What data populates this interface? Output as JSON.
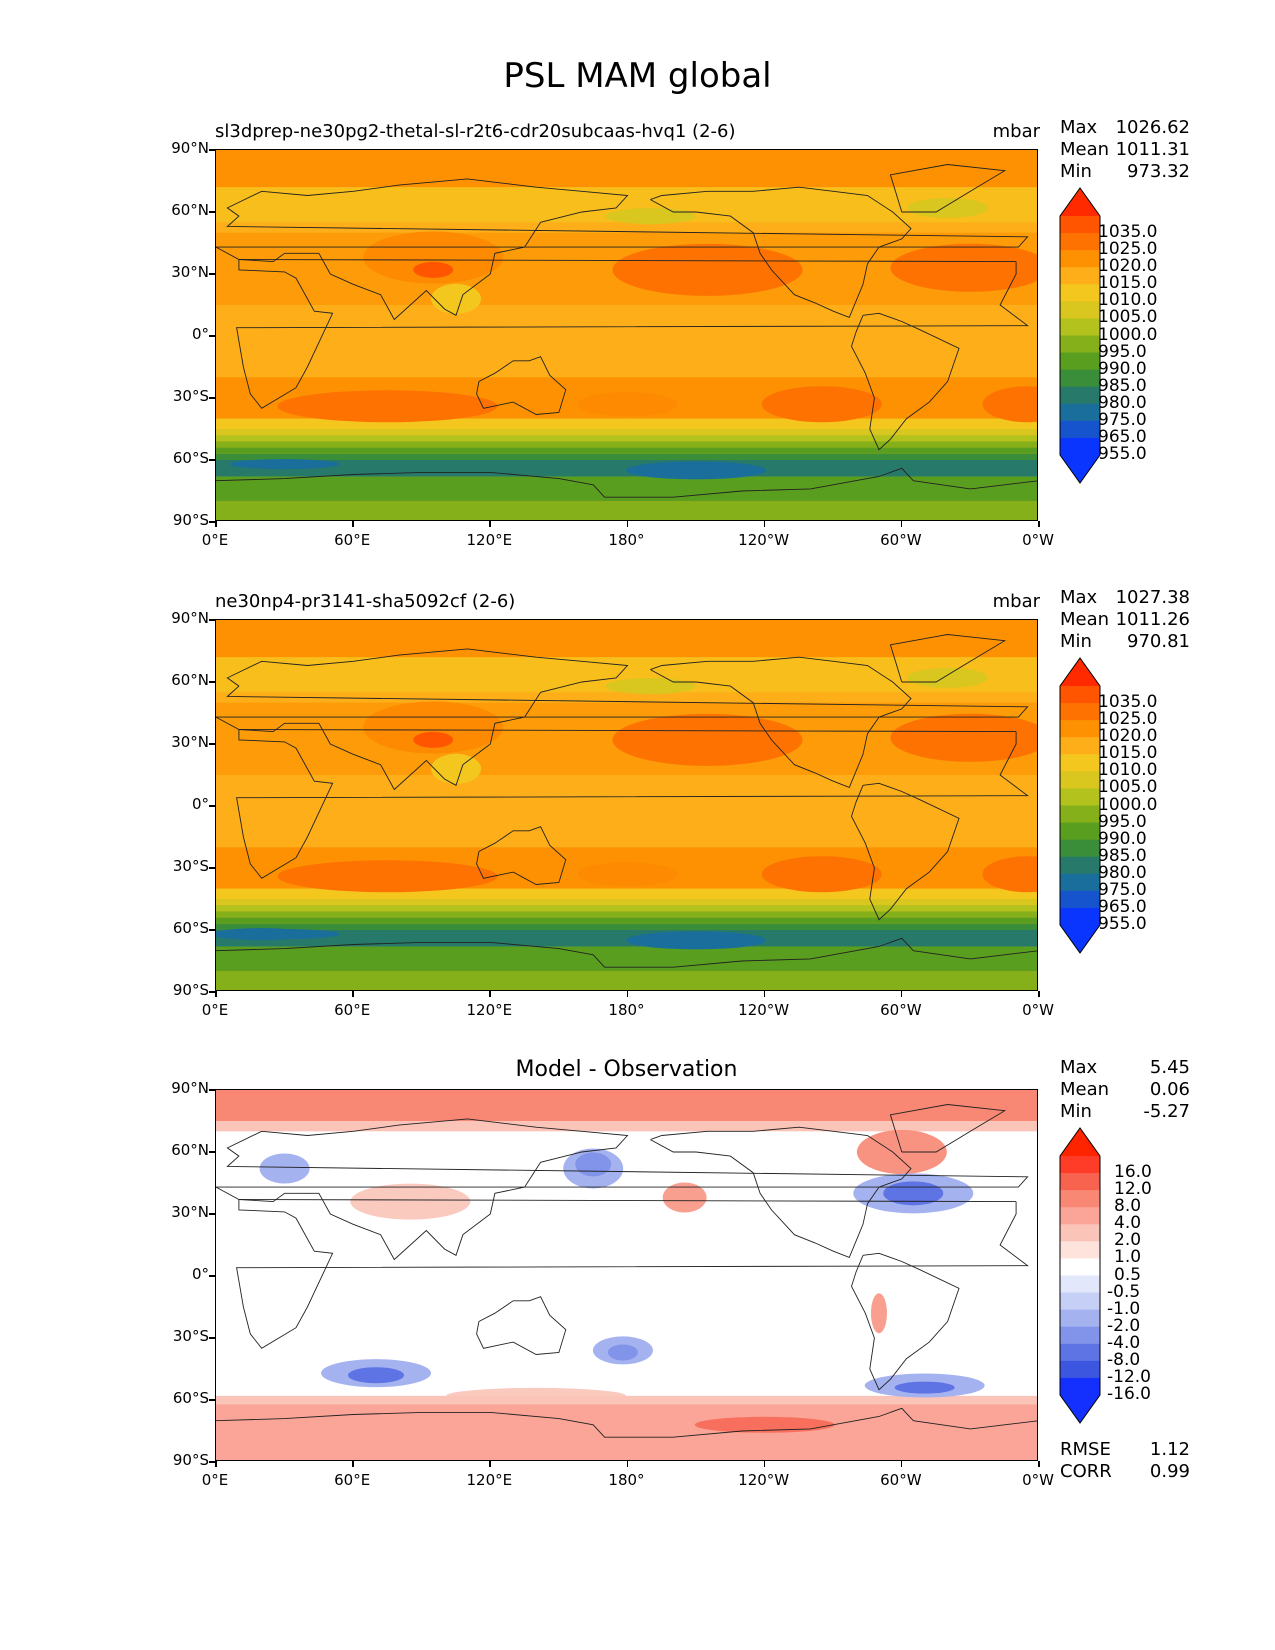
{
  "figure": {
    "title": "PSL MAM global"
  },
  "axes": {
    "yticks": [
      "90°N",
      "60°N",
      "30°N",
      "0°",
      "30°S",
      "60°S",
      "90°S"
    ],
    "xticks": [
      "0°E",
      "60°E",
      "120°E",
      "180°",
      "120°W",
      "60°W",
      "0°W"
    ]
  },
  "panels": [
    {
      "title_left": "sl3dprep-ne30pg2-thetal-sl-r2t6-cdr20subcaas-hvq1 (2-6)",
      "title_right": "mbar",
      "title_center": "",
      "stats": [
        {
          "k": "Max",
          "v": "1026.62"
        },
        {
          "k": "Mean",
          "v": "1011.31"
        },
        {
          "k": "Min",
          "v": "973.32"
        }
      ],
      "cbar_labels": [
        "1035.0",
        "1025.0",
        "1020.0",
        "1015.0",
        "1010.0",
        "1005.0",
        "1000.0",
        "995.0",
        "990.0",
        "985.0",
        "980.0",
        "975.0",
        "965.0",
        "955.0"
      ],
      "cbar_colors": [
        "#ff2a00",
        "#ff5500",
        "#fd7200",
        "#fd9102",
        "#fdae19",
        "#f4c71e",
        "#d9c61e",
        "#b3c21c",
        "#86b01a",
        "#5a9e1f",
        "#3a8e3a",
        "#277a6a",
        "#1a6e9c",
        "#1554cc",
        "#0a35ff",
        "#0a35ff"
      ],
      "extremes": {
        "max": 1026.62,
        "mean": 1011.31,
        "min": 973.32
      }
    },
    {
      "title_left": "ne30np4-pr3141-sha5092cf (2-6)",
      "title_right": "mbar",
      "title_center": "",
      "stats": [
        {
          "k": "Max",
          "v": "1027.38"
        },
        {
          "k": "Mean",
          "v": "1011.26"
        },
        {
          "k": "Min",
          "v": "970.81"
        }
      ],
      "cbar_labels": [
        "1035.0",
        "1025.0",
        "1020.0",
        "1015.0",
        "1010.0",
        "1005.0",
        "1000.0",
        "995.0",
        "990.0",
        "985.0",
        "980.0",
        "975.0",
        "965.0",
        "955.0"
      ],
      "cbar_colors": [
        "#ff2a00",
        "#ff5500",
        "#fd7200",
        "#fd9102",
        "#fdae19",
        "#f4c71e",
        "#d9c61e",
        "#b3c21c",
        "#86b01a",
        "#5a9e1f",
        "#3a8e3a",
        "#277a6a",
        "#1a6e9c",
        "#1554cc",
        "#0a35ff",
        "#0a35ff"
      ],
      "extremes": {
        "max": 1027.38,
        "mean": 1011.26,
        "min": 970.81
      }
    },
    {
      "title_left": "",
      "title_right": "",
      "title_center": "Model - Observation",
      "stats": [
        {
          "k": "Max",
          "v": "5.45"
        },
        {
          "k": "Mean",
          "v": "0.06"
        },
        {
          "k": "Min",
          "v": "-5.27"
        }
      ],
      "cbar_labels": [
        "16.0",
        "12.0",
        "8.0",
        "4.0",
        "2.0",
        "1.0",
        "0.5",
        "-0.5",
        "-1.0",
        "-2.0",
        "-4.0",
        "-8.0",
        "-12.0",
        "-16.0"
      ],
      "cbar_colors": [
        "#ff2400",
        "#ff3c28",
        "#f8634f",
        "#f88773",
        "#faa597",
        "#fbc4b8",
        "#fde3dc",
        "#ffffff",
        "#e2e7fb",
        "#c6cff5",
        "#a5b2f0",
        "#8294ea",
        "#5e74e4",
        "#3c56e0",
        "#1430ff",
        "#1430ff"
      ],
      "extremes": {
        "max": 5.45,
        "mean": 0.06,
        "min": -5.27
      },
      "footer_stats": [
        {
          "k": "RMSE",
          "v": "1.12"
        },
        {
          "k": "CORR",
          "v": "0.99"
        }
      ]
    }
  ],
  "chart_data": [
    {
      "type": "heatmap",
      "title": "sl3dprep-ne30pg2-thetal-sl-r2t6-cdr20subcaas-hvq1 (2-6)",
      "units": "mbar",
      "xlim": [
        0,
        360
      ],
      "ylim": [
        -90,
        90
      ],
      "stats": {
        "max": 1026.62,
        "mean": 1011.31,
        "min": 973.32
      },
      "colorbar_levels": [
        955,
        965,
        975,
        980,
        985,
        990,
        995,
        1000,
        1005,
        1010,
        1015,
        1020,
        1025,
        1035
      ]
    },
    {
      "type": "heatmap",
      "title": "ne30np4-pr3141-sha5092cf (2-6)",
      "units": "mbar",
      "xlim": [
        0,
        360
      ],
      "ylim": [
        -90,
        90
      ],
      "stats": {
        "max": 1027.38,
        "mean": 1011.26,
        "min": 970.81
      },
      "colorbar_levels": [
        955,
        965,
        975,
        980,
        985,
        990,
        995,
        1000,
        1005,
        1010,
        1015,
        1020,
        1025,
        1035
      ]
    },
    {
      "type": "heatmap",
      "title": "Model - Observation",
      "xlim": [
        0,
        360
      ],
      "ylim": [
        -90,
        90
      ],
      "stats": {
        "max": 5.45,
        "mean": 0.06,
        "min": -5.27,
        "rmse": 1.12,
        "corr": 0.99
      },
      "colorbar_levels": [
        -16,
        -12,
        -8,
        -4,
        -2,
        -1,
        -0.5,
        0.5,
        1,
        2,
        4,
        8,
        12,
        16
      ]
    }
  ]
}
